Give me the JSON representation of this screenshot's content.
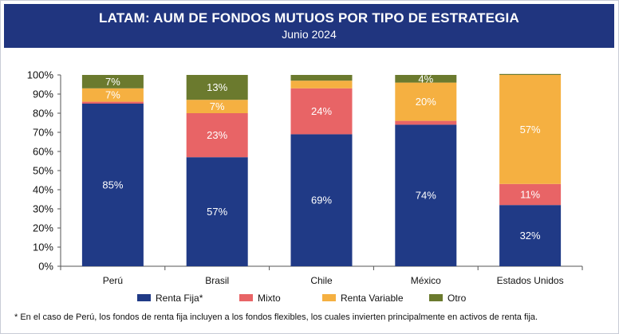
{
  "header": {
    "title": "LATAM: AUM DE FONDOS MUTUOS POR TIPO DE ESTRATEGIA",
    "subtitle": "Junio 2024"
  },
  "footnote": "* En el caso de Perú, los fondos de renta fija incluyen a los fondos flexibles, los cuales invierten principalmente en activos de renta fija.",
  "chart_data": {
    "type": "bar",
    "stacked": true,
    "categories": [
      "Perú",
      "Brasil",
      "Chile",
      "México",
      "Estados Unidos"
    ],
    "series": [
      {
        "name": "Renta Fija*",
        "color": "#203a86",
        "values": [
          85,
          57,
          69,
          74,
          32
        ],
        "labels": [
          "85%",
          "57%",
          "69%",
          "74%",
          "32%"
        ]
      },
      {
        "name": "Mixto",
        "color": "#e86466",
        "values": [
          1,
          23,
          24,
          2,
          11
        ],
        "labels": [
          "",
          "23%",
          "24%",
          "",
          "11%"
        ]
      },
      {
        "name": "Renta Variable",
        "color": "#f5b041",
        "values": [
          7,
          7,
          4,
          20,
          57
        ],
        "labels": [
          "7%",
          "7%",
          "",
          "20%",
          "57%"
        ]
      },
      {
        "name": "Otro",
        "color": "#6b7a2e",
        "values": [
          7,
          13,
          3,
          4,
          0.5
        ],
        "labels": [
          "7%",
          "13%",
          "",
          "4%",
          ""
        ]
      }
    ],
    "y_ticks": [
      "0%",
      "10%",
      "20%",
      "30%",
      "40%",
      "50%",
      "60%",
      "70%",
      "80%",
      "90%",
      "100%"
    ],
    "ylim": [
      0,
      100
    ],
    "grid": false,
    "legend_position": "bottom"
  }
}
